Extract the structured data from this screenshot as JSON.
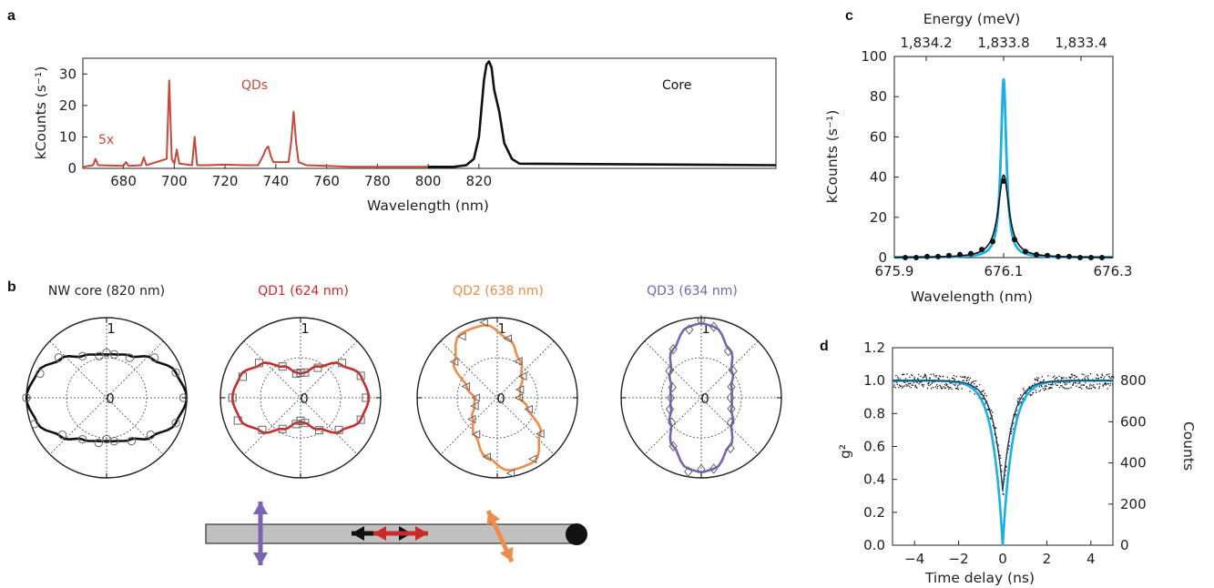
{
  "colors": {
    "qd_red": "#c8473a",
    "core_black": "#111111",
    "qd1": "#cc2b2b",
    "qd2": "#f08c4a",
    "qd3": "#7b62b3",
    "cyan": "#1ab0e3",
    "nanowire_gray": "#c0c0c0"
  },
  "panels": {
    "a": {
      "label": "a",
      "xlabel": "Wavelength (nm)",
      "ylabel": "kCounts (s⁻¹)",
      "annot_qds": "QDs",
      "annot_core": "Core",
      "annot_5x": "5x"
    },
    "b": {
      "label": "b",
      "polar_r_labels": [
        "1",
        "0"
      ],
      "titles": [
        "NW core (820 nm)",
        "QD1 (624 nm)",
        "QD2 (638 nm)",
        "QD3 (634 nm)"
      ]
    },
    "c": {
      "label": "c",
      "xlabel": "Wavelength (nm)",
      "ylabel": "kCounts (s⁻¹)",
      "top_xlabel": "Energy (meV)"
    },
    "d": {
      "label": "d",
      "xlabel": "Time delay (ns)",
      "ylabel": "g²",
      "right_ylabel": "Counts"
    }
  },
  "chart_data": [
    {
      "id": "a",
      "type": "line",
      "xlim": [
        664,
        937
      ],
      "ylim": [
        0,
        35
      ],
      "xticks": [
        680,
        700,
        720,
        740,
        760,
        780,
        800,
        820
      ],
      "yticks": [
        0,
        10,
        20,
        30
      ],
      "series": [
        {
          "name": "QDs",
          "x": [
            664,
            668,
            669,
            670,
            680,
            681,
            682,
            687,
            688,
            689,
            697,
            698,
            699,
            700,
            701,
            702,
            707,
            708,
            709,
            713,
            720,
            728,
            733,
            735,
            736,
            737,
            738,
            739,
            745,
            746,
            747,
            748,
            749,
            752,
            760,
            770,
            780,
            790,
            800
          ],
          "y": [
            0.5,
            1,
            3,
            1,
            0.8,
            2,
            0.8,
            1,
            3.5,
            1,
            3,
            28,
            3,
            1.5,
            6,
            1.5,
            1,
            10,
            1,
            1,
            1.2,
            1,
            1,
            4,
            6,
            7,
            4,
            2,
            2,
            8,
            18,
            8,
            2,
            1,
            0.8,
            0.5,
            0.5,
            0.5,
            0.5
          ]
        },
        {
          "name": "Core",
          "x": [
            800,
            810,
            815,
            818,
            820,
            822,
            823,
            824,
            825,
            826,
            828,
            830,
            833,
            836,
            937
          ],
          "y": [
            0.5,
            0.5,
            1,
            3,
            10,
            28,
            33,
            34,
            32,
            25,
            18,
            8,
            3,
            1.5,
            1
          ]
        }
      ]
    },
    {
      "id": "b",
      "type": "polar",
      "rlim": [
        0,
        1
      ],
      "rticks": [
        0,
        1
      ],
      "series": [
        {
          "name": "NW core (820 nm)",
          "angles_deg": [
            0,
            20,
            40,
            60,
            80,
            90,
            100,
            120,
            140,
            160,
            180,
            200,
            220,
            240,
            260,
            270,
            280,
            300,
            320,
            340
          ],
          "r": [
            1.0,
            0.92,
            0.75,
            0.6,
            0.55,
            0.54,
            0.55,
            0.6,
            0.75,
            0.92,
            1.0,
            0.92,
            0.75,
            0.6,
            0.55,
            0.54,
            0.55,
            0.6,
            0.75,
            0.92
          ]
        },
        {
          "name": "QD1 (624 nm)",
          "angles_deg": [
            0,
            20,
            40,
            60,
            80,
            90,
            100,
            120,
            140,
            160,
            180,
            200,
            220,
            240,
            260,
            270,
            280,
            300,
            320,
            340
          ],
          "r": [
            0.85,
            0.8,
            0.65,
            0.45,
            0.32,
            0.3,
            0.32,
            0.45,
            0.65,
            0.8,
            0.85,
            0.8,
            0.65,
            0.45,
            0.32,
            0.3,
            0.32,
            0.45,
            0.65,
            0.8
          ]
        },
        {
          "name": "QD2 (638 nm)",
          "angles_deg": [
            0,
            20,
            40,
            60,
            80,
            100,
            120,
            140,
            160,
            180,
            200,
            220,
            240,
            260,
            280,
            300,
            320,
            340
          ],
          "r": [
            0.28,
            0.3,
            0.4,
            0.55,
            0.75,
            0.92,
            0.92,
            0.7,
            0.4,
            0.28,
            0.3,
            0.4,
            0.55,
            0.75,
            0.92,
            0.92,
            0.7,
            0.4
          ]
        },
        {
          "name": "QD3 (634 nm)",
          "angles_deg": [
            0,
            20,
            40,
            60,
            80,
            90,
            100,
            120,
            140,
            160,
            180,
            200,
            220,
            240,
            260,
            270,
            280,
            300,
            320,
            340
          ],
          "r": [
            0.38,
            0.4,
            0.5,
            0.7,
            0.9,
            0.93,
            0.9,
            0.7,
            0.5,
            0.4,
            0.38,
            0.4,
            0.5,
            0.7,
            0.9,
            0.93,
            0.9,
            0.7,
            0.5,
            0.4
          ]
        }
      ]
    },
    {
      "id": "c",
      "type": "line",
      "xlim": [
        675.9,
        676.3
      ],
      "ylim": [
        0,
        100
      ],
      "xticks": [
        675.9,
        676.1,
        676.3
      ],
      "yticks": [
        0,
        20,
        40,
        60,
        80,
        100
      ],
      "top_ticks": [
        "1,834.2",
        "1,833.8",
        "1,833.4"
      ],
      "series": [
        {
          "name": "data",
          "x": [
            675.92,
            675.94,
            675.96,
            675.98,
            676.0,
            676.02,
            676.04,
            676.06,
            676.08,
            676.1,
            676.12,
            676.14,
            676.16,
            676.18,
            676.2,
            676.22,
            676.24,
            676.26,
            676.28
          ],
          "y": [
            0,
            0,
            0.5,
            0.5,
            1,
            1.5,
            2,
            4,
            8,
            38,
            9,
            3,
            1.5,
            1,
            0.5,
            0.5,
            0,
            0,
            0
          ]
        },
        {
          "name": "fit",
          "x0": 676.1,
          "gamma": 0.012,
          "amp": 41
        },
        {
          "name": "deconvolved",
          "x0": 676.1,
          "gamma": 0.006,
          "amp": 89
        }
      ]
    },
    {
      "id": "d",
      "type": "scatter",
      "xlim": [
        -5,
        5
      ],
      "ylim": [
        0,
        1.2
      ],
      "xticks": [
        -4,
        -2,
        0,
        2,
        4
      ],
      "yticks": [
        0.0,
        0.2,
        0.4,
        0.6,
        0.8,
        1.0,
        1.2
      ],
      "right_yticks": [
        0,
        200,
        400,
        600,
        800
      ],
      "g2_zero_fit": 0.33,
      "g2_zero_deconvolved": 0.0
    }
  ]
}
